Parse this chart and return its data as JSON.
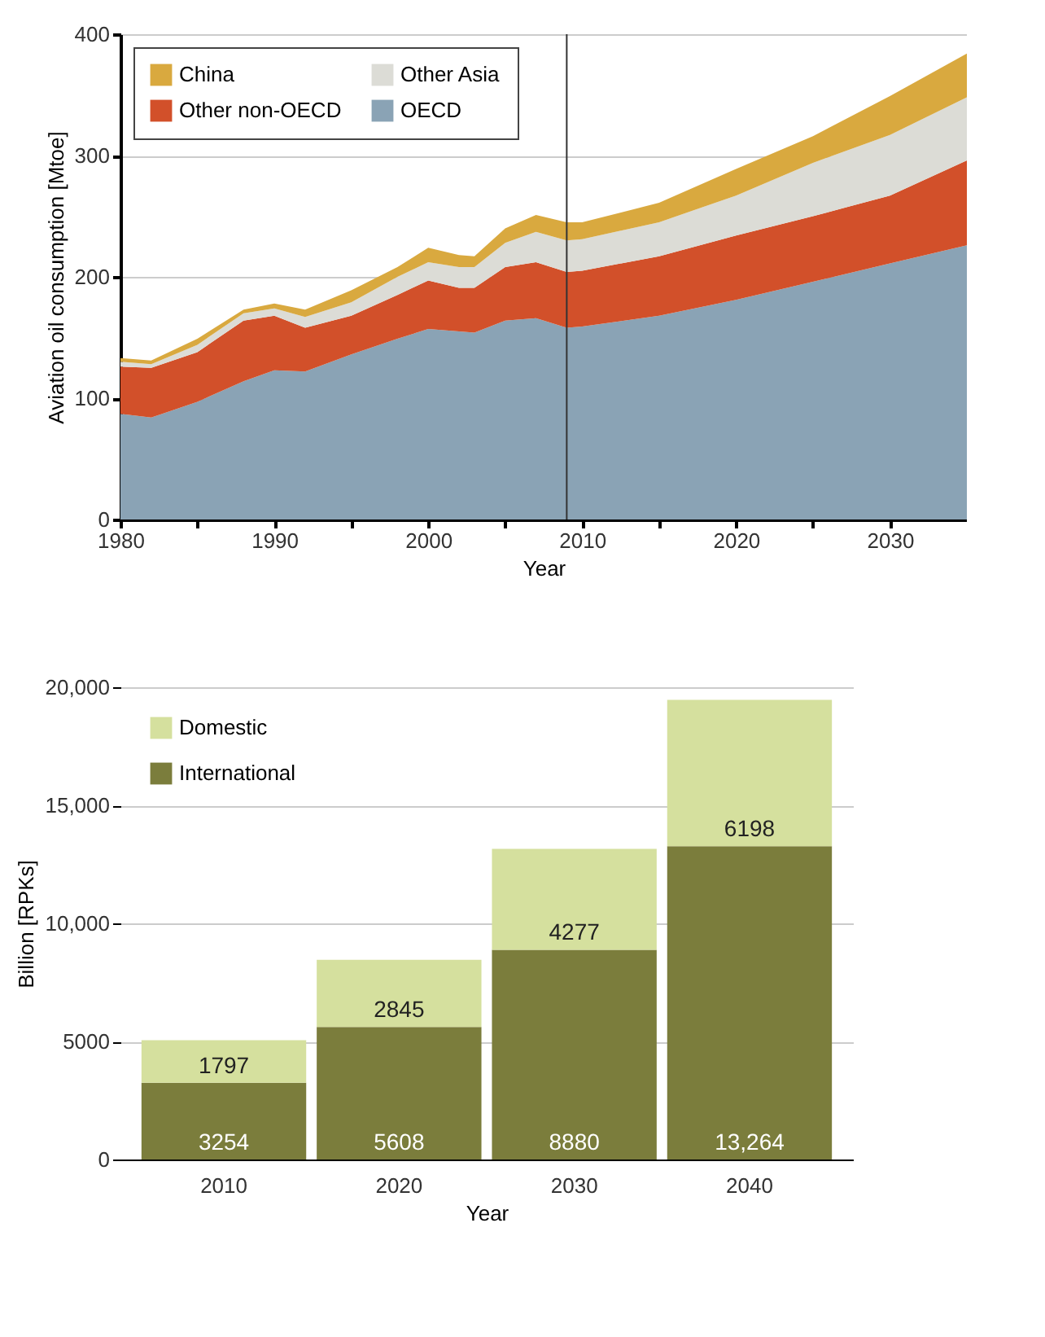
{
  "chart_data": [
    {
      "type": "area",
      "stacked": true,
      "xlabel": "Year",
      "ylabel": "Aviation oil consumption [Mtoe]",
      "x": [
        1980,
        1982,
        1985,
        1988,
        1990,
        1992,
        1995,
        1998,
        2000,
        2002,
        2003,
        2005,
        2007,
        2009,
        2010,
        2015,
        2020,
        2025,
        2030,
        2035
      ],
      "series": [
        {
          "name": "OECD",
          "color": "#8aa3b5",
          "values": [
            87,
            84,
            97,
            114,
            123,
            122,
            136,
            149,
            157,
            155,
            154,
            164,
            166,
            158,
            159,
            168,
            181,
            196,
            211,
            226
          ]
        },
        {
          "name": "Other non-OECD",
          "color": "#d2502a",
          "values": [
            39,
            41,
            41,
            50,
            45,
            36,
            32,
            36,
            40,
            36,
            37,
            44,
            46,
            46,
            46,
            49,
            53,
            54,
            56,
            70
          ]
        },
        {
          "name": "Other Asia",
          "color": "#dcdcd6",
          "values": [
            4,
            3,
            6,
            6,
            6,
            9,
            11,
            15,
            15,
            17,
            17,
            20,
            25,
            26,
            26,
            28,
            33,
            44,
            50,
            52
          ]
        },
        {
          "name": "China",
          "color": "#d9a93f",
          "values": [
            3,
            3,
            5,
            3,
            4,
            6,
            10,
            8,
            12,
            10,
            9,
            12,
            14,
            15,
            14,
            16,
            22,
            22,
            32,
            36
          ]
        }
      ],
      "xlim": [
        1980,
        2035
      ],
      "xticks": [
        1980,
        {
          "value": 1985,
          "label": null
        },
        1990,
        {
          "value": 1995,
          "label": null
        },
        2000,
        {
          "value": 2005,
          "label": null
        },
        2010,
        {
          "value": 2015,
          "label": null
        },
        2020,
        {
          "value": 2025,
          "label": null
        },
        2030
      ],
      "ylim": [
        0,
        400
      ],
      "yticks": [
        0,
        100,
        200,
        300,
        400
      ],
      "ref_lines": [
        {
          "axis": "x",
          "value": 2009,
          "color": "#333333"
        }
      ],
      "grid": "y",
      "legend": "top left"
    },
    {
      "type": "bar",
      "stacked": true,
      "xlabel": "Year",
      "ylabel": "Billion [RPKs]",
      "categories": [
        "2010",
        "2020",
        "2030",
        "2040"
      ],
      "series": [
        {
          "name": "International",
          "color": "#7b7d3c",
          "values": [
            3254,
            5608,
            8880,
            13264
          ],
          "value_labels": [
            "3254",
            "5608",
            "8880",
            "13,264"
          ]
        },
        {
          "name": "Domestic",
          "color": "#d5e09e",
          "values": [
            1797,
            2845,
            4277,
            6198
          ],
          "value_labels": [
            "1797",
            "2845",
            "4277",
            "6198"
          ]
        }
      ],
      "ylim": [
        0,
        20000
      ],
      "yticks": [
        0,
        5000,
        {
          "value": 10000,
          "label": "10,000"
        },
        {
          "value": 15000,
          "label": "15,000"
        },
        {
          "value": 20000,
          "label": "20,000"
        }
      ],
      "grid": "y",
      "legend": "top left"
    }
  ]
}
